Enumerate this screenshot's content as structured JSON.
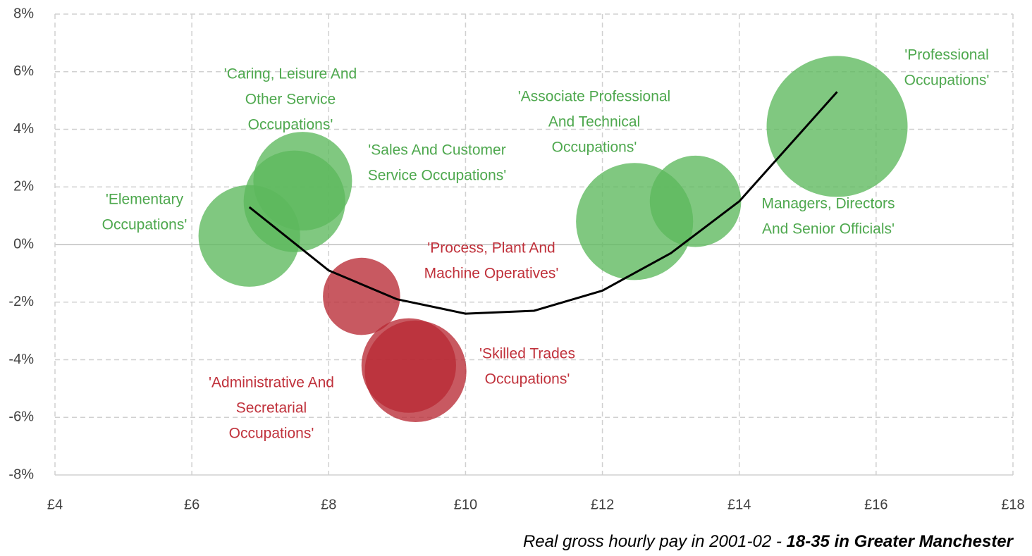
{
  "chart_data": {
    "type": "bubble",
    "x_label": "Real gross hourly pay in 2001-02 - ",
    "x_label_emphasis": "18-35 in Greater Manchester",
    "xlim": [
      4,
      18
    ],
    "ylim": [
      -8,
      8
    ],
    "xticks": [
      {
        "value": 4,
        "label": "£4"
      },
      {
        "value": 6,
        "label": "£6"
      },
      {
        "value": 8,
        "label": "£8"
      },
      {
        "value": 10,
        "label": "£10"
      },
      {
        "value": 12,
        "label": "£12"
      },
      {
        "value": 14,
        "label": "£14"
      },
      {
        "value": 16,
        "label": "£16"
      },
      {
        "value": 18,
        "label": "£18"
      }
    ],
    "yticks": [
      {
        "value": 8,
        "label": "8%"
      },
      {
        "value": 6,
        "label": "6%"
      },
      {
        "value": 4,
        "label": "4%"
      },
      {
        "value": 2,
        "label": "2%"
      },
      {
        "value": 0,
        "label": "0%"
      },
      {
        "value": -2,
        "label": "-2%"
      },
      {
        "value": -4,
        "label": "-4%"
      },
      {
        "value": -6,
        "label": "-6%"
      },
      {
        "value": -8,
        "label": "-8%"
      }
    ],
    "grid": true,
    "points": {
      "labels": [
        [
          "'Elementary",
          "Occupations'"
        ],
        [
          "'Caring, Leisure And",
          "Other Service",
          "Occupations'"
        ],
        [
          "'Sales And Customer",
          "Service Occupations'"
        ],
        [
          "'Process, Plant And",
          "Machine Operatives'"
        ],
        [
          "'Administrative And",
          "Secretarial",
          "Occupations'"
        ],
        [
          "'Skilled Trades",
          "Occupations'"
        ],
        [
          "'Associate Professional",
          "And Technical",
          "Occupations'"
        ],
        [
          "Managers, Directors",
          "And Senior Officials'"
        ],
        [
          "'Professional",
          "Occupations'"
        ]
      ],
      "x": [
        6.84,
        7.62,
        7.5,
        8.48,
        9.17,
        9.27,
        12.47,
        13.36,
        15.43
      ],
      "values": [
        0.3,
        2.2,
        1.5,
        -1.8,
        -4.2,
        -4.4,
        0.8,
        1.5,
        4.1
      ],
      "sizes": [
        52,
        49,
        52,
        30,
        45,
        52,
        69,
        42,
        100
      ],
      "colors": [
        "#5cb85c",
        "#5cb85c",
        "#5cb85c",
        "#b82a34",
        "#b82a34",
        "#b82a34",
        "#5cb85c",
        "#5cb85c",
        "#5cb85c"
      ]
    },
    "trend": {
      "x": [
        6.84,
        8,
        9,
        10,
        11,
        12,
        13,
        14,
        15.43
      ],
      "values": [
        1.3,
        -0.9,
        -1.9,
        -2.4,
        -2.3,
        -1.6,
        -0.3,
        1.5,
        5.3
      ],
      "color": "#000000"
    }
  }
}
